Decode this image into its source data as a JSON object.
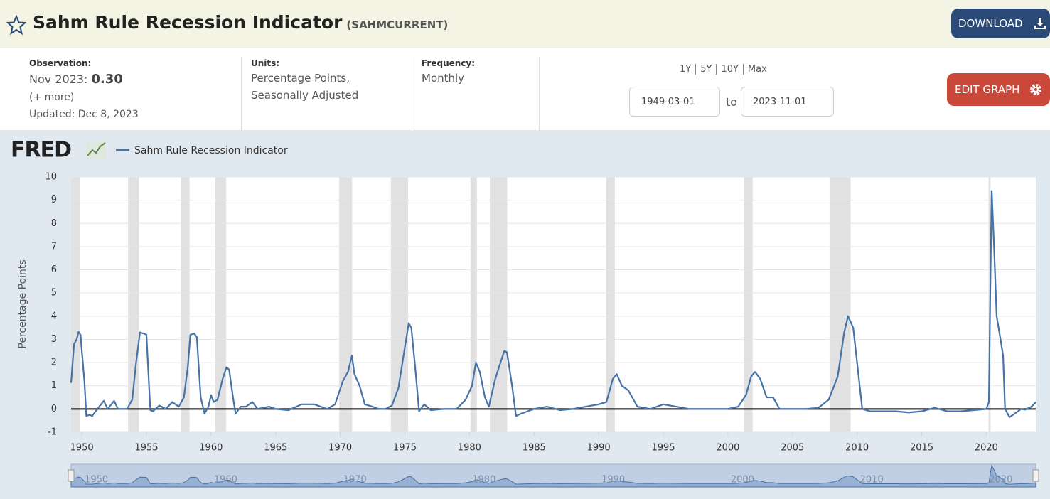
{
  "header": {
    "title": "Sahm Rule Recession Indicator",
    "series_id": "(SAHMCURRENT)",
    "download": "DOWNLOAD"
  },
  "info": {
    "observation_label": "Observation:",
    "observation_date": "Nov 2023:",
    "observation_value": "0.30",
    "more": "(+ more)",
    "updated": "Updated: Dec 8, 2023",
    "units_label": "Units:",
    "units": [
      "Percentage Points,",
      "Seasonally Adjusted"
    ],
    "frequency_label": "Frequency:",
    "frequency": "Monthly",
    "ranges": [
      "1Y",
      "5Y",
      "10Y",
      "Max"
    ],
    "start_date": "1949-03-01",
    "to": "to",
    "end_date": "2023-11-01",
    "edit_graph": "EDIT GRAPH"
  },
  "chart_data": {
    "type": "line",
    "logo": "FRED",
    "y_label": "Percentage Points",
    "x": [
      1949.17,
      1949.4,
      1949.6,
      1949.75,
      1949.9,
      1950.0,
      1950.2,
      1950.35,
      1950.6,
      1950.8,
      1951.2,
      1951.7,
      1952.0,
      1952.5,
      1952.8,
      1953.5,
      1953.9,
      1954.2,
      1954.5,
      1954.8,
      1955.0,
      1955.3,
      1955.5,
      1956.0,
      1956.5,
      1957.0,
      1957.5,
      1957.9,
      1958.2,
      1958.4,
      1958.7,
      1958.9,
      1959.2,
      1959.5,
      1959.8,
      1960.0,
      1960.2,
      1960.5,
      1960.9,
      1961.2,
      1961.4,
      1961.7,
      1961.9,
      1962.3,
      1962.7,
      1963.2,
      1963.6,
      1964.5,
      1965,
      1966,
      1967,
      1968,
      1969,
      1969.6,
      1970.2,
      1970.6,
      1970.9,
      1971.1,
      1971.5,
      1971.9,
      1972.5,
      1973,
      1973.5,
      1974,
      1974.5,
      1974.9,
      1975.3,
      1975.5,
      1975.8,
      1976.1,
      1976.5,
      1977,
      1978,
      1979,
      1979.7,
      1980.2,
      1980.5,
      1980.8,
      1981.2,
      1981.5,
      1982.0,
      1982.4,
      1982.7,
      1982.9,
      1983.3,
      1983.6,
      1984,
      1985,
      1986,
      1987,
      1988,
      1989,
      1990.0,
      1990.6,
      1991.1,
      1991.4,
      1991.8,
      1992.3,
      1992.6,
      1993.0,
      1994,
      1995,
      1996,
      1997,
      1998,
      1999,
      2000,
      2000.8,
      2001.4,
      2001.8,
      2002.1,
      2002.5,
      2003,
      2003.5,
      2004,
      2005,
      2006,
      2007,
      2007.8,
      2008.5,
      2009.0,
      2009.3,
      2009.7,
      2010.0,
      2010.4,
      2011,
      2012,
      2013,
      2014,
      2015,
      2016,
      2017,
      2018,
      2019,
      2020.0,
      2020.2,
      2020.33,
      2020.42,
      2020.6,
      2020.8,
      2021.1,
      2021.3,
      2021.45,
      2021.8,
      2022.2,
      2022.7,
      2023.0,
      2023.5,
      2023.83
    ],
    "series": [
      {
        "name": "Sahm Rule Recession Indicator",
        "color": "#4572a7",
        "values": [
          1.13,
          2.8,
          3.0,
          3.33,
          3.2,
          2.5,
          1.2,
          -0.3,
          -0.25,
          -0.3,
          0.0,
          0.35,
          0.0,
          0.35,
          0.0,
          0.0,
          0.4,
          2.0,
          3.3,
          3.25,
          3.2,
          -0.05,
          -0.1,
          0.15,
          0.0,
          0.3,
          0.1,
          0.5,
          1.8,
          3.2,
          3.25,
          3.1,
          0.5,
          -0.2,
          0.1,
          0.6,
          0.3,
          0.4,
          1.3,
          1.8,
          1.7,
          0.5,
          -0.2,
          0.1,
          0.1,
          0.3,
          0.0,
          0.1,
          0.0,
          -0.05,
          0.2,
          0.2,
          0.0,
          0.2,
          1.2,
          1.6,
          2.3,
          1.5,
          1.0,
          0.2,
          0.1,
          0.0,
          0.0,
          0.15,
          0.9,
          2.3,
          3.7,
          3.5,
          1.8,
          -0.1,
          0.2,
          -0.05,
          0.0,
          0.0,
          0.4,
          1.0,
          2.0,
          1.6,
          0.5,
          0.1,
          1.3,
          2.0,
          2.5,
          2.45,
          1.0,
          -0.3,
          -0.2,
          0.0,
          0.1,
          -0.05,
          0.0,
          0.1,
          0.2,
          0.3,
          1.3,
          1.5,
          1.0,
          0.8,
          0.5,
          0.1,
          0.0,
          0.2,
          0.1,
          0.0,
          0.0,
          0.0,
          0.0,
          0.1,
          0.6,
          1.4,
          1.6,
          1.3,
          0.5,
          0.5,
          0.0,
          0.0,
          0.0,
          0.05,
          0.4,
          1.4,
          3.3,
          4.0,
          3.5,
          2.0,
          0.0,
          -0.1,
          -0.1,
          -0.1,
          -0.15,
          -0.1,
          0.05,
          -0.1,
          -0.1,
          -0.05,
          0.0,
          0.3,
          6.0,
          9.4,
          7.0,
          4.0,
          3.0,
          2.3,
          0.0,
          -0.35,
          -0.2,
          0.0,
          -0.03,
          0.1,
          0.3
        ]
      }
    ],
    "recessions": [
      {
        "start": 1949.17,
        "end": 1949.83
      },
      {
        "start": 1953.58,
        "end": 1954.42
      },
      {
        "start": 1957.67,
        "end": 1958.33
      },
      {
        "start": 1960.33,
        "end": 1961.17
      },
      {
        "start": 1969.92,
        "end": 1970.92
      },
      {
        "start": 1973.92,
        "end": 1975.25
      },
      {
        "start": 1980.08,
        "end": 1980.58
      },
      {
        "start": 1981.58,
        "end": 1982.92
      },
      {
        "start": 1990.58,
        "end": 1991.25
      },
      {
        "start": 2001.25,
        "end": 2001.92
      },
      {
        "start": 2007.92,
        "end": 2009.5
      },
      {
        "start": 2020.17,
        "end": 2020.33
      }
    ],
    "recession_color": "#e1e1e1",
    "xlim": [
      1949.17,
      2023.83
    ],
    "xticks": [
      1950,
      1955,
      1960,
      1965,
      1970,
      1975,
      1980,
      1985,
      1990,
      1995,
      2000,
      2005,
      2010,
      2015,
      2020
    ],
    "ylim": [
      -1,
      10
    ],
    "yticks": [
      -1,
      0,
      1,
      2,
      3,
      4,
      5,
      6,
      7,
      8,
      9,
      10
    ],
    "grid": true,
    "navigator_ticks": [
      1950,
      1960,
      1970,
      1980,
      1990,
      2000,
      2010,
      2020
    ]
  }
}
